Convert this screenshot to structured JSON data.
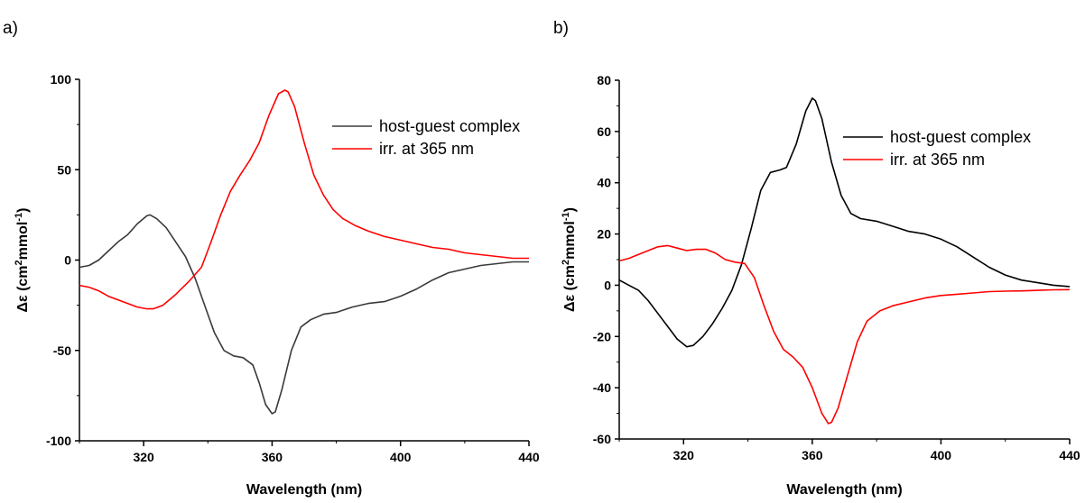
{
  "chart_data": [
    {
      "panel": "a)",
      "type": "line",
      "title": "",
      "xlabel": "Wavelength (nm)",
      "ylabel_prefix": "Δε (cm",
      "ylabel_sup1": "2",
      "ylabel_mid": "mmol",
      "ylabel_sup2": "-1",
      "ylabel_suffix": ")",
      "xlim": [
        300,
        440
      ],
      "ylim": [
        -100,
        100
      ],
      "xticks": [
        320,
        360,
        400,
        440
      ],
      "yticks": [
        -100,
        -50,
        0,
        50,
        100
      ],
      "legend_position": "top-right",
      "grid": false,
      "series": [
        {
          "name": "host-guest complex",
          "color": "#3a3a3a",
          "points": [
            [
              300,
              -4
            ],
            [
              303,
              -3
            ],
            [
              306,
              0
            ],
            [
              309,
              5
            ],
            [
              312,
              10
            ],
            [
              315,
              14
            ],
            [
              318,
              20
            ],
            [
              321,
              24.5
            ],
            [
              322,
              25
            ],
            [
              324,
              23
            ],
            [
              327,
              18
            ],
            [
              330,
              10
            ],
            [
              333,
              2
            ],
            [
              336,
              -10
            ],
            [
              339,
              -25
            ],
            [
              342,
              -40
            ],
            [
              345,
              -50
            ],
            [
              348,
              -53
            ],
            [
              351,
              -54
            ],
            [
              354,
              -58
            ],
            [
              356,
              -68
            ],
            [
              358,
              -80
            ],
            [
              360,
              -85
            ],
            [
              361,
              -84
            ],
            [
              363,
              -72
            ],
            [
              366,
              -50
            ],
            [
              369,
              -37
            ],
            [
              372,
              -33
            ],
            [
              376,
              -30
            ],
            [
              380,
              -29
            ],
            [
              385,
              -26
            ],
            [
              390,
              -24
            ],
            [
              395,
              -23
            ],
            [
              400,
              -20
            ],
            [
              405,
              -16
            ],
            [
              410,
              -11
            ],
            [
              415,
              -7
            ],
            [
              420,
              -5
            ],
            [
              425,
              -3
            ],
            [
              430,
              -2
            ],
            [
              435,
              -1
            ],
            [
              440,
              -1
            ]
          ]
        },
        {
          "name": "irr. at 365 nm",
          "color": "#ff0000",
          "points": [
            [
              300,
              -14
            ],
            [
              303,
              -15
            ],
            [
              306,
              -17
            ],
            [
              309,
              -20
            ],
            [
              312,
              -22
            ],
            [
              315,
              -24
            ],
            [
              318,
              -26
            ],
            [
              321,
              -27
            ],
            [
              323,
              -27
            ],
            [
              326,
              -25
            ],
            [
              330,
              -19
            ],
            [
              334,
              -12
            ],
            [
              338,
              -4
            ],
            [
              341,
              10
            ],
            [
              344,
              25
            ],
            [
              347,
              38
            ],
            [
              350,
              47
            ],
            [
              353,
              55
            ],
            [
              356,
              65
            ],
            [
              359,
              80
            ],
            [
              362,
              92
            ],
            [
              364,
              94
            ],
            [
              365,
              93
            ],
            [
              367,
              85
            ],
            [
              370,
              65
            ],
            [
              373,
              47
            ],
            [
              376,
              36
            ],
            [
              379,
              28
            ],
            [
              382,
              23
            ],
            [
              386,
              19
            ],
            [
              390,
              16
            ],
            [
              395,
              13
            ],
            [
              400,
              11
            ],
            [
              405,
              9
            ],
            [
              410,
              7
            ],
            [
              415,
              6
            ],
            [
              420,
              4
            ],
            [
              425,
              3
            ],
            [
              430,
              2
            ],
            [
              435,
              1
            ],
            [
              440,
              1
            ]
          ]
        }
      ]
    },
    {
      "panel": "b)",
      "type": "line",
      "title": "",
      "xlabel": "Wavelength (nm)",
      "ylabel_prefix": "Δε (cm",
      "ylabel_sup1": "2",
      "ylabel_mid": "mmol",
      "ylabel_sup2": "-1",
      "ylabel_suffix": ")",
      "xlim": [
        300,
        440
      ],
      "ylim": [
        -60,
        80
      ],
      "xticks": [
        320,
        360,
        400,
        440
      ],
      "yticks": [
        -60,
        -40,
        -20,
        0,
        20,
        40,
        60,
        80
      ],
      "legend_position": "top-right",
      "grid": false,
      "series": [
        {
          "name": "host-guest complex",
          "color": "#000000",
          "points": [
            [
              300,
              2
            ],
            [
              303,
              0
            ],
            [
              306,
              -2
            ],
            [
              309,
              -6
            ],
            [
              312,
              -11
            ],
            [
              315,
              -16
            ],
            [
              318,
              -21
            ],
            [
              321,
              -24
            ],
            [
              323,
              -23.5
            ],
            [
              326,
              -20
            ],
            [
              329,
              -15
            ],
            [
              332,
              -9
            ],
            [
              335,
              -2
            ],
            [
              338,
              8
            ],
            [
              341,
              22
            ],
            [
              344,
              37
            ],
            [
              347,
              44
            ],
            [
              350,
              45
            ],
            [
              352,
              46
            ],
            [
              355,
              55
            ],
            [
              358,
              68
            ],
            [
              360,
              73
            ],
            [
              361,
              72
            ],
            [
              363,
              65
            ],
            [
              366,
              48
            ],
            [
              369,
              35
            ],
            [
              372,
              28
            ],
            [
              375,
              26
            ],
            [
              380,
              25
            ],
            [
              385,
              23
            ],
            [
              390,
              21
            ],
            [
              395,
              20
            ],
            [
              400,
              18
            ],
            [
              405,
              15
            ],
            [
              410,
              11
            ],
            [
              415,
              7
            ],
            [
              420,
              4
            ],
            [
              425,
              2
            ],
            [
              430,
              1
            ],
            [
              435,
              0
            ],
            [
              440,
              -0.5
            ]
          ]
        },
        {
          "name": "irr. at 365 nm",
          "color": "#ff0000",
          "points": [
            [
              300,
              9.5
            ],
            [
              303,
              10.5
            ],
            [
              306,
              12
            ],
            [
              309,
              13.5
            ],
            [
              312,
              15
            ],
            [
              315,
              15.5
            ],
            [
              318,
              14.5
            ],
            [
              321,
              13.5
            ],
            [
              324,
              14
            ],
            [
              327,
              14
            ],
            [
              330,
              12.5
            ],
            [
              333,
              10
            ],
            [
              336,
              9
            ],
            [
              339,
              8.5
            ],
            [
              342,
              3
            ],
            [
              345,
              -8
            ],
            [
              348,
              -18
            ],
            [
              351,
              -25
            ],
            [
              354,
              -28
            ],
            [
              357,
              -32
            ],
            [
              360,
              -40
            ],
            [
              363,
              -50
            ],
            [
              365,
              -54
            ],
            [
              366,
              -53.5
            ],
            [
              368,
              -48
            ],
            [
              371,
              -35
            ],
            [
              374,
              -22
            ],
            [
              377,
              -14
            ],
            [
              381,
              -10
            ],
            [
              385,
              -8
            ],
            [
              390,
              -6.5
            ],
            [
              395,
              -5
            ],
            [
              400,
              -4
            ],
            [
              405,
              -3.5
            ],
            [
              410,
              -3
            ],
            [
              415,
              -2.5
            ],
            [
              420,
              -2.3
            ],
            [
              425,
              -2.2
            ],
            [
              430,
              -2
            ],
            [
              435,
              -1.8
            ],
            [
              440,
              -1.7
            ]
          ]
        }
      ]
    }
  ]
}
